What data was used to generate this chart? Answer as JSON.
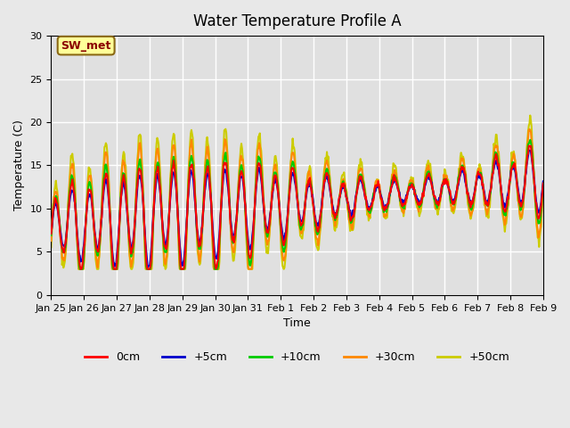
{
  "title": "Water Temperature Profile A",
  "xlabel": "Time",
  "ylabel": "Temperature (C)",
  "ylim": [
    0,
    30
  ],
  "n_days": 15,
  "background_color": "#e8e8e8",
  "plot_bg_color": "#e0e0e0",
  "annotation_text": "SW_met",
  "annotation_bg": "#ffff99",
  "annotation_border": "#8b6914",
  "annotation_text_color": "#8b0000",
  "legend_entries": [
    "0cm",
    "+5cm",
    "+10cm",
    "+30cm",
    "+50cm"
  ],
  "legend_colors": [
    "#ff0000",
    "#0000cc",
    "#00cc00",
    "#ff8800",
    "#cccc00"
  ],
  "x_tick_labels": [
    "Jan 25",
    "Jan 26",
    "Jan 27",
    "Jan 28",
    "Jan 29",
    "Jan 30",
    "Jan 31",
    "Feb 1",
    "Feb 2",
    "Feb 3",
    "Feb 4",
    "Feb 5",
    "Feb 6",
    "Feb 7",
    "Feb 8",
    "Feb 9"
  ],
  "y_tick_labels": [
    0,
    5,
    10,
    15,
    20,
    25,
    30
  ],
  "grid_color": "#ffffff",
  "line_width": 1.5
}
